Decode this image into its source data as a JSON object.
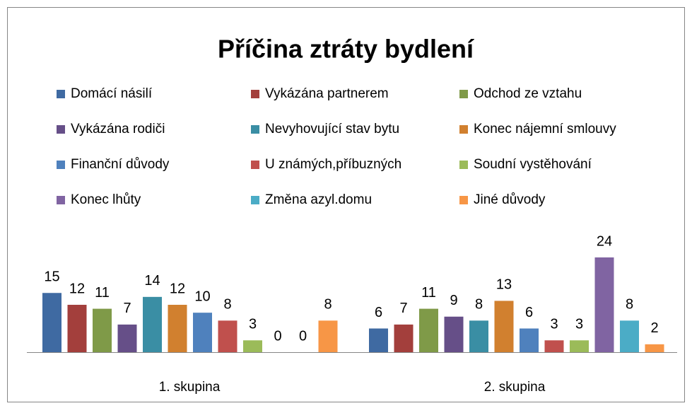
{
  "chart_data": {
    "type": "bar",
    "title": "Příčina ztráty bydlení",
    "categories": [
      "1. skupina",
      "2. skupina"
    ],
    "series": [
      {
        "name": "Domácí násilí",
        "color": "#3f6aa2",
        "values": [
          15,
          6
        ]
      },
      {
        "name": "Vykázána partnerem",
        "color": "#a33f3c",
        "values": [
          12,
          7
        ]
      },
      {
        "name": "Odchod ze vztahu",
        "color": "#7f9a48",
        "values": [
          11,
          11
        ]
      },
      {
        "name": "Vykázána rodiči",
        "color": "#664f88",
        "values": [
          7,
          9
        ]
      },
      {
        "name": "Nevyhovující stav bytu",
        "color": "#3a8ea4",
        "values": [
          14,
          8
        ]
      },
      {
        "name": "Konec nájemní smlouvy",
        "color": "#d1802f",
        "values": [
          12,
          13
        ]
      },
      {
        "name": "Finanční důvody",
        "color": "#4f81bd",
        "values": [
          10,
          6
        ]
      },
      {
        "name": "U známých,příbuzných",
        "color": "#c0504d",
        "values": [
          8,
          3
        ]
      },
      {
        "name": "Soudní vystěhování",
        "color": "#9bbb59",
        "values": [
          3,
          3
        ]
      },
      {
        "name": "Konec lhůty",
        "color": "#8064a2",
        "values": [
          0,
          24
        ]
      },
      {
        "name": "Změna azyl.domu",
        "color": "#4bacc6",
        "values": [
          0,
          8
        ]
      },
      {
        "name": "Jiné důvody",
        "color": "#f79646",
        "values": [
          8,
          2
        ]
      }
    ],
    "legend": "top"
  }
}
